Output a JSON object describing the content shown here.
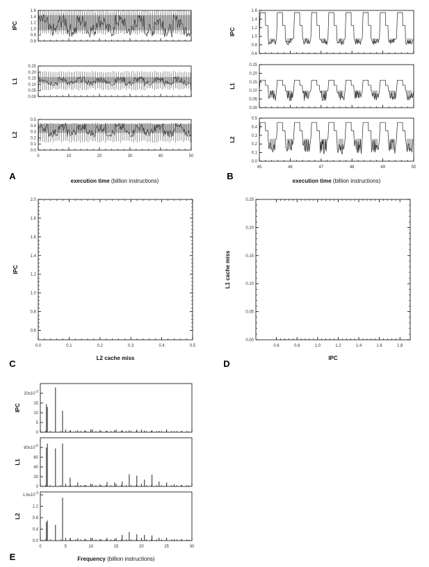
{
  "chart_data": [
    {
      "panel": "A",
      "type": "line",
      "xlabel_bold": "execution time",
      "xlabel_rest": " (billion instructions)",
      "xlim": [
        0,
        50
      ],
      "xticks": [
        "0",
        "10",
        "20",
        "30",
        "40",
        "50"
      ],
      "subplots": [
        {
          "ylabel": "IPC",
          "ylim": [
            0.6,
            1.6
          ],
          "yticks": [
            "0.6",
            "0.8",
            "1.0",
            "1.2",
            "1.4",
            "1.6"
          ],
          "base": 0.95,
          "high": 1.45,
          "spike_high": 1.6,
          "spike_low": 0.8
        },
        {
          "ylabel": "L1",
          "ylim": [
            0,
            0.25
          ],
          "yticks": [
            "0.00",
            "0.05",
            "0.10",
            "0.15",
            "0.20",
            "0.25"
          ],
          "base": 0.11,
          "high": 0.16,
          "spike_high": 0.21,
          "spike_low": 0.05
        },
        {
          "ylabel": "L2",
          "ylim": [
            0,
            0.5
          ],
          "yticks": [
            "0.0",
            "0.1",
            "0.2",
            "0.3",
            "0.4",
            "0.5"
          ],
          "base": 0.28,
          "high": 0.43,
          "spike_high": 0.45,
          "spike_low": 0.12
        }
      ]
    },
    {
      "panel": "B",
      "type": "line",
      "xlabel_bold": "execution time",
      "xlabel_rest": " (billion instructions)",
      "xlim": [
        45,
        50
      ],
      "xticks": [
        "45",
        "46",
        "47",
        "48",
        "49",
        "50"
      ],
      "subplots": [
        {
          "ylabel": "IPC",
          "ylim": [
            0.6,
            1.6
          ],
          "yticks": [
            "0.6",
            "0.8",
            "1.0",
            "1.2",
            "1.4",
            "1.6"
          ],
          "base": 0.95,
          "high": 1.55,
          "low": 0.8
        },
        {
          "ylabel": "L1",
          "ylim": [
            0,
            0.25
          ],
          "yticks": [
            "0.00",
            "0.05",
            "0.10",
            "0.15",
            "0.20",
            "0.25"
          ],
          "base": 0.1,
          "high": 0.16,
          "low": 0.04
        },
        {
          "ylabel": "L2",
          "ylim": [
            0,
            0.5
          ],
          "yticks": [
            "0.0",
            "0.1",
            "0.2",
            "0.3",
            "0.4",
            "0.5"
          ],
          "base": 0.26,
          "high": 0.45,
          "low": 0.08
        }
      ]
    },
    {
      "panel": "C",
      "type": "scatter",
      "xlabel": "L2 cache miss",
      "ylabel": "IPC",
      "xlim": [
        0,
        0.5
      ],
      "ylim": [
        0.5,
        2.0
      ],
      "xticks": [
        "0.0",
        "0.1",
        "0.2",
        "0.3",
        "0.4",
        "0.5"
      ],
      "yticks": [
        "0.6",
        "0.8",
        "1.0",
        "1.2",
        "1.4",
        "1.6",
        "1.8",
        "2.0"
      ],
      "points": []
    },
    {
      "panel": "D",
      "type": "scatter",
      "xlabel": "IPC",
      "ylabel": "L1 cache miss",
      "xlim": [
        0.4,
        1.9
      ],
      "ylim": [
        0,
        0.25
      ],
      "xticks": [
        "0.6",
        "0.8",
        "1.0",
        "1.2",
        "1.4",
        "1.6",
        "1.8"
      ],
      "yticks": [
        "0.00",
        "0.05",
        "0.10",
        "0.15",
        "0.20",
        "0.25"
      ],
      "points": []
    },
    {
      "panel": "E",
      "type": "bar",
      "xlabel_bold": "Frequency",
      "xlabel_rest": " (billion instructions)",
      "xlim": [
        0,
        30
      ],
      "xticks": [
        "0",
        "5",
        "10",
        "15",
        "20",
        "25",
        "30"
      ],
      "subplots": [
        {
          "ylabel": "IPC",
          "ylim": [
            0,
            25
          ],
          "yticks": [
            "0",
            "5",
            "10",
            "15"
          ],
          "toptick": "20x10",
          "topexp": "-3",
          "x": [
            1.2,
            1.4,
            3.0,
            4.4,
            5.9,
            7.4,
            8.8,
            10.3,
            11.8,
            13.2,
            14.7,
            16.2,
            17.6,
            19.1,
            20.6,
            22.1,
            23.5,
            25.0,
            26.5,
            27.9,
            29.4
          ],
          "values": [
            14.5,
            13,
            23,
            11,
            1,
            1,
            1,
            1.5,
            1,
            0.8,
            1,
            1,
            1,
            1.3,
            0.8,
            1,
            0.7,
            0.8,
            0.5,
            0.5,
            0.4
          ]
        },
        {
          "ylabel": "L1",
          "ylim": [
            0,
            100
          ],
          "yticks": [
            "0",
            "20",
            "40",
            "60"
          ],
          "toptick": "80x10",
          "topexp": "-6",
          "x": [
            1.2,
            1.4,
            3.0,
            4.4,
            5.9,
            7.4,
            8.8,
            10.3,
            11.8,
            13.2,
            14.7,
            16.2,
            17.6,
            19.1,
            20.6,
            22.1,
            23.5,
            25.0,
            26.5,
            27.9,
            29.4
          ],
          "values": [
            80,
            88,
            78,
            88,
            18,
            8,
            3,
            5,
            4,
            9,
            8,
            10,
            25,
            22,
            14,
            24,
            10,
            8,
            4,
            3,
            2
          ]
        },
        {
          "ylabel": "L2",
          "ylim": [
            0,
            1.7
          ],
          "yticks": [
            "0.0",
            "0.4",
            "0.8",
            "1.2"
          ],
          "toptick": "1.6x10",
          "topexp": "-3",
          "x": [
            1.2,
            1.4,
            3.0,
            4.4,
            5.9,
            7.4,
            8.8,
            10.3,
            11.8,
            13.2,
            14.7,
            16.2,
            17.6,
            19.1,
            20.6,
            22.1,
            23.5,
            25.0,
            26.5,
            27.9,
            29.4
          ],
          "values": [
            0.65,
            0.7,
            0.55,
            1.5,
            0.1,
            0.08,
            0.06,
            0.1,
            0.05,
            0.1,
            0.06,
            0.2,
            0.3,
            0.22,
            0.2,
            0.18,
            0.1,
            0.08,
            0.05,
            0.04,
            0.03
          ]
        }
      ]
    }
  ]
}
